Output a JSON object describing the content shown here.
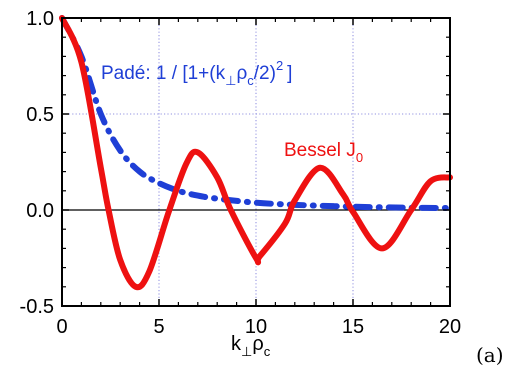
{
  "chart_data": {
    "type": "line",
    "panel_label": "(a)",
    "xlabel_main": "k",
    "xlabel_sub1": "⊥",
    "xlabel_mid": "ρ",
    "xlabel_sub2": "c",
    "xlim": [
      0,
      20
    ],
    "ylim": [
      -0.5,
      1.0
    ],
    "x_ticks": [
      0,
      5,
      10,
      15,
      20
    ],
    "x_tick_labels": [
      "0",
      "5",
      "10",
      "15",
      "20"
    ],
    "y_ticks": [
      -0.5,
      0.0,
      0.5,
      1.0
    ],
    "y_tick_labels": [
      "-0.5",
      "0.0",
      "0.5",
      "1.0"
    ],
    "grid": "dotted",
    "zero_line": true,
    "series": [
      {
        "key": "pade",
        "color": "#1f3fd6",
        "style": "dash-dot",
        "x": [
          0,
          1,
          2,
          3,
          4,
          5,
          6,
          7,
          8,
          10,
          12,
          14,
          16,
          18,
          20
        ],
        "y": [
          1.0,
          0.8,
          0.5,
          0.31,
          0.2,
          0.14,
          0.1,
          0.075,
          0.059,
          0.038,
          0.027,
          0.02,
          0.015,
          0.012,
          0.01
        ]
      },
      {
        "key": "bessel",
        "color": "#ee1111",
        "style": "solid",
        "x": [
          0,
          1,
          2,
          2.4,
          3,
          3.8,
          4.5,
          5.5,
          6.4,
          7.0,
          8.0,
          8.7,
          10.0,
          10.2,
          11.5,
          12.0,
          13.3,
          14.5,
          15.0,
          16.5,
          18.0,
          19.0,
          20.0
        ],
        "y": [
          1.0,
          0.77,
          0.22,
          0.0,
          -0.26,
          -0.4,
          -0.32,
          -0.01,
          0.24,
          0.3,
          0.17,
          0.0,
          -0.25,
          -0.24,
          -0.07,
          0.05,
          0.22,
          0.08,
          -0.01,
          -0.2,
          0.0,
          0.15,
          0.17
        ]
      }
    ],
    "annotations": {
      "pade_label": "Padé: 1 / [1+(k",
      "pade_sub1": "⊥",
      "pade_rho": "ρ",
      "pade_sub2": "c",
      "pade_tail": "/2)",
      "pade_sup": "2",
      "pade_close": "]",
      "bessel_label": "Bessel  J",
      "bessel_sub": "0"
    }
  }
}
